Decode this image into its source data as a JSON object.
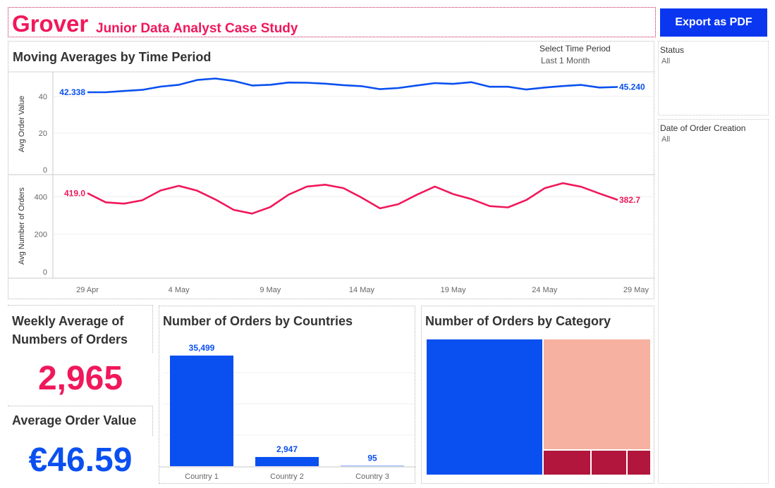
{
  "header": {
    "brand": "Grover",
    "subtitle": "Junior Data Analyst Case Study",
    "export_label": "Export as PDF"
  },
  "filters": {
    "status": {
      "title": "Status",
      "value": "All"
    },
    "date_of_order_creation": {
      "title": "Date of Order Creation",
      "value": "All"
    }
  },
  "time_period": {
    "label": "Select Time Period",
    "value": "Last 1 Month"
  },
  "kpis": {
    "weekly_avg_orders": {
      "title": "Weekly Average of Numbers of Orders",
      "value": "2,965"
    },
    "avg_order_value": {
      "title": "Average Order Value",
      "value": "€46.59"
    }
  },
  "colors": {
    "brand_pink": "#f0185a",
    "brand_blue": "#0a50f0",
    "export_blue": "#0a36f0",
    "treemap_salmon": "#f7b1a0",
    "treemap_crimson": "#b2163d"
  },
  "chart_data": [
    {
      "type": "line",
      "title": "Moving Averages by Time Period",
      "x_ticks": [
        "29 Apr",
        "4 May",
        "9 May",
        "14 May",
        "19 May",
        "24 May",
        "29 May"
      ],
      "panels": [
        {
          "ylabel": "Avg Order Value",
          "y_ticks": [
            "0",
            "20",
            "40"
          ],
          "ylim": [
            0,
            50
          ],
          "color": "#0a50f0",
          "start_label": "42.338",
          "end_label": "45.240",
          "values": [
            42.3,
            42.3,
            43.0,
            43.6,
            45.4,
            46.4,
            49.0,
            49.8,
            48.5,
            46.0,
            46.4,
            47.6,
            47.5,
            47.0,
            46.2,
            45.6,
            44.0,
            44.6,
            46.0,
            47.3,
            46.9,
            47.8,
            45.3,
            45.3,
            43.8,
            44.9,
            45.7,
            46.3,
            44.9,
            45.2
          ]
        },
        {
          "ylabel": "Avg Number of Orders",
          "y_ticks": [
            "0",
            "200",
            "400"
          ],
          "ylim": [
            0,
            480
          ],
          "color": "#f0185a",
          "start_label": "419.0",
          "end_label": "382.7",
          "values": [
            419,
            370,
            363,
            381,
            433,
            458,
            432,
            385,
            330,
            310,
            345,
            411,
            454,
            464,
            446,
            395,
            338,
            360,
            410,
            454,
            414,
            387,
            350,
            343,
            382,
            445,
            472,
            453,
            417,
            383
          ]
        }
      ]
    },
    {
      "type": "bar",
      "title": "Number of Orders by Countries",
      "categories": [
        "Country 1",
        "Country 2",
        "Country 3"
      ],
      "values": [
        35499,
        2947,
        95
      ],
      "value_labels": [
        "35,499",
        "2,947",
        "95"
      ],
      "color": "#0a50f0",
      "ylim": [
        0,
        40000
      ]
    },
    {
      "type": "treemap",
      "title": "Number of Orders by Category",
      "tiles": [
        {
          "color": "#0a50f0",
          "share": 0.52
        },
        {
          "color": "#f7b1a0",
          "share": 0.39
        },
        {
          "color": "#b2163d",
          "share": 0.04
        },
        {
          "color": "#b2163d",
          "share": 0.03
        },
        {
          "color": "#b2163d",
          "share": 0.02
        }
      ]
    }
  ]
}
